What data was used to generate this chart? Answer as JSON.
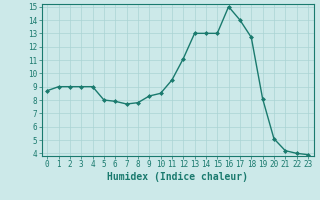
{
  "x": [
    0,
    1,
    2,
    3,
    4,
    5,
    6,
    7,
    8,
    9,
    10,
    11,
    12,
    13,
    14,
    15,
    16,
    17,
    18,
    19,
    20,
    21,
    22,
    23
  ],
  "y": [
    8.7,
    9.0,
    9.0,
    9.0,
    9.0,
    8.0,
    7.9,
    7.7,
    7.8,
    8.3,
    8.5,
    9.5,
    11.1,
    13.0,
    13.0,
    13.0,
    15.0,
    14.0,
    12.7,
    8.1,
    5.1,
    4.2,
    4.0,
    3.9
  ],
  "line_color": "#1a7a6e",
  "marker": "D",
  "marker_size": 2.0,
  "bg_color": "#cce9e9",
  "grid_color": "#aad4d4",
  "xlabel": "Humidex (Indice chaleur)",
  "ylim": [
    4,
    15
  ],
  "xlim": [
    -0.5,
    23.5
  ],
  "yticks": [
    4,
    5,
    6,
    7,
    8,
    9,
    10,
    11,
    12,
    13,
    14,
    15
  ],
  "xticks": [
    0,
    1,
    2,
    3,
    4,
    5,
    6,
    7,
    8,
    9,
    10,
    11,
    12,
    13,
    14,
    15,
    16,
    17,
    18,
    19,
    20,
    21,
    22,
    23
  ],
  "tick_label_fontsize": 5.5,
  "xlabel_fontsize": 7.0,
  "line_width": 1.0
}
